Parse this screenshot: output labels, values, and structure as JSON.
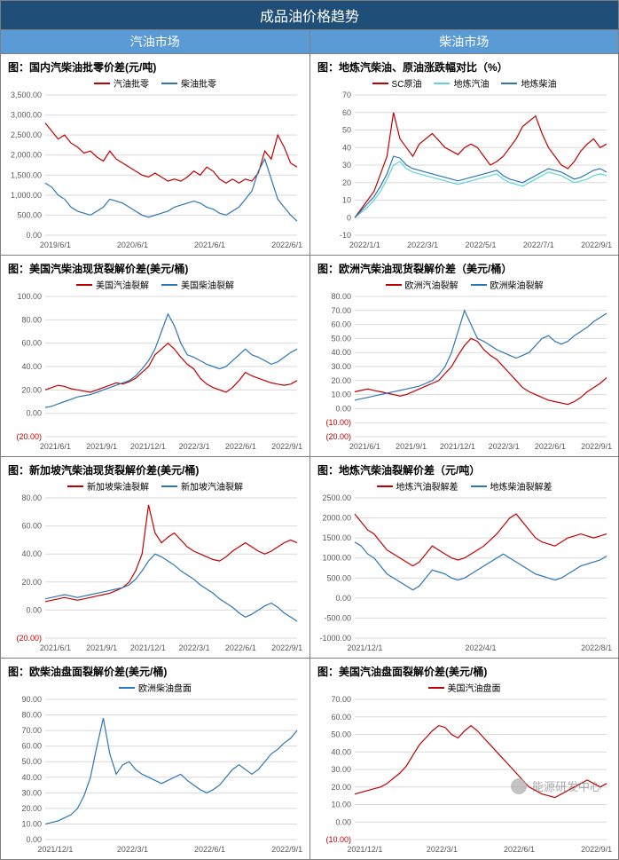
{
  "main_title": "成品油价格趋势",
  "col_headers": [
    "汽油市场",
    "柴油市场"
  ],
  "watermark": "能源研发中心",
  "colors": {
    "red": "#c00000",
    "blue": "#2e75b6",
    "cyan": "#5bd5d5",
    "grid": "#d9d9d9",
    "axis": "#bfbfbf"
  },
  "charts": [
    {
      "title": "图：国内汽柴油批零价差(元/吨)",
      "legend": [
        {
          "label": "汽油批零",
          "color": "#c00000"
        },
        {
          "label": "柴油批零",
          "color": "#2e75b6"
        }
      ],
      "y": {
        "min": 0,
        "max": 3500,
        "step": 500,
        "fmt": "comma"
      },
      "x_labels": [
        "2019/6/1",
        "2020/6/1",
        "2021/6/1",
        "2022/6/1"
      ],
      "series": [
        {
          "color": "#c00000",
          "data": [
            2800,
            2600,
            2400,
            2500,
            2300,
            2200,
            2050,
            2100,
            1950,
            1850,
            2100,
            1900,
            1800,
            1700,
            1600,
            1500,
            1450,
            1550,
            1450,
            1350,
            1400,
            1350,
            1450,
            1600,
            1500,
            1700,
            1600,
            1400,
            1300,
            1400,
            1300,
            1400,
            1350,
            1550,
            2100,
            1900,
            2500,
            2200,
            1800,
            1700
          ]
        },
        {
          "color": "#2e75b6",
          "data": [
            1300,
            1200,
            1000,
            900,
            700,
            600,
            550,
            500,
            600,
            700,
            900,
            850,
            800,
            700,
            600,
            500,
            450,
            500,
            550,
            600,
            700,
            750,
            800,
            850,
            800,
            700,
            650,
            550,
            500,
            600,
            700,
            900,
            1100,
            1600,
            1900,
            1400,
            900,
            700,
            500,
            350
          ]
        }
      ]
    },
    {
      "title": "图：地炼汽柴油、原油涨跌幅对比（%）",
      "legend": [
        {
          "label": "SC原油",
          "color": "#c00000"
        },
        {
          "label": "地炼汽油",
          "color": "#5bd5d5"
        },
        {
          "label": "地炼柴油",
          "color": "#2e75b6"
        }
      ],
      "y": {
        "min": -10,
        "max": 70,
        "step": 10,
        "fmt": "plain"
      },
      "x_labels": [
        "2022/1/1",
        "2022/3/1",
        "2022/5/1",
        "2022/7/1",
        "2022/9/1"
      ],
      "series": [
        {
          "color": "#c00000",
          "data": [
            0,
            5,
            10,
            15,
            25,
            35,
            60,
            45,
            40,
            35,
            42,
            45,
            48,
            44,
            40,
            38,
            36,
            40,
            42,
            40,
            35,
            30,
            32,
            35,
            40,
            45,
            52,
            55,
            58,
            48,
            40,
            35,
            30,
            28,
            32,
            38,
            42,
            45,
            40,
            42
          ]
        },
        {
          "color": "#5bd5d5",
          "data": [
            0,
            3,
            6,
            10,
            15,
            22,
            30,
            32,
            28,
            26,
            25,
            24,
            23,
            22,
            21,
            20,
            19,
            20,
            21,
            22,
            23,
            24,
            25,
            22,
            20,
            19,
            18,
            20,
            22,
            24,
            26,
            25,
            24,
            22,
            20,
            21,
            22,
            24,
            25,
            24
          ]
        },
        {
          "color": "#2e75b6",
          "data": [
            0,
            4,
            8,
            12,
            18,
            25,
            35,
            34,
            30,
            28,
            27,
            26,
            25,
            24,
            23,
            22,
            21,
            22,
            23,
            24,
            25,
            26,
            27,
            24,
            22,
            21,
            20,
            22,
            24,
            26,
            28,
            27,
            26,
            24,
            22,
            23,
            25,
            27,
            28,
            26
          ]
        }
      ]
    },
    {
      "title": "图：美国汽柴油现货裂解价差(美元/桶)",
      "legend": [
        {
          "label": "美国汽油裂解",
          "color": "#c00000"
        },
        {
          "label": "美国柴油裂解",
          "color": "#2e75b6"
        }
      ],
      "y": {
        "min": -20,
        "max": 100,
        "step": 20,
        "fmt": "dec2",
        "neg": true
      },
      "x_labels": [
        "2021/6/1",
        "2021/9/1",
        "2021/12/1",
        "2022/3/1",
        "2022/6/1",
        "2022/9/1"
      ],
      "series": [
        {
          "color": "#c00000",
          "data": [
            20,
            22,
            24,
            23,
            21,
            20,
            19,
            18,
            20,
            22,
            24,
            26,
            25,
            27,
            30,
            35,
            40,
            50,
            55,
            60,
            55,
            48,
            42,
            38,
            30,
            25,
            22,
            20,
            18,
            22,
            28,
            35,
            32,
            30,
            28,
            26,
            25,
            24,
            25,
            28
          ]
        },
        {
          "color": "#2e75b6",
          "data": [
            5,
            6,
            8,
            10,
            12,
            14,
            15,
            16,
            18,
            20,
            22,
            24,
            26,
            28,
            32,
            38,
            45,
            55,
            70,
            85,
            75,
            60,
            50,
            48,
            45,
            42,
            40,
            38,
            40,
            45,
            50,
            55,
            50,
            48,
            45,
            42,
            44,
            48,
            52,
            55
          ]
        }
      ]
    },
    {
      "title": "图：欧洲汽柴油现货裂解价差（美元/桶）",
      "legend": [
        {
          "label": "欧洲汽油裂解",
          "color": "#c00000"
        },
        {
          "label": "欧洲柴油裂解",
          "color": "#2e75b6"
        }
      ],
      "y": {
        "min": -20,
        "max": 80,
        "step": 10,
        "fmt": "dec2",
        "neg": true
      },
      "x_labels": [
        "2021/6/1",
        "2021/9/1",
        "2021/12/1",
        "2022/3/1",
        "2022/6/1",
        "2022/9/1"
      ],
      "series": [
        {
          "color": "#c00000",
          "data": [
            12,
            13,
            14,
            13,
            12,
            11,
            10,
            9,
            10,
            12,
            14,
            16,
            18,
            20,
            25,
            30,
            38,
            45,
            50,
            48,
            42,
            38,
            35,
            30,
            25,
            20,
            15,
            12,
            10,
            8,
            6,
            5,
            4,
            3,
            5,
            8,
            12,
            15,
            18,
            22
          ]
        },
        {
          "color": "#2e75b6",
          "data": [
            6,
            7,
            8,
            9,
            10,
            11,
            12,
            13,
            14,
            15,
            16,
            18,
            20,
            24,
            30,
            40,
            55,
            70,
            60,
            50,
            48,
            45,
            42,
            40,
            38,
            36,
            38,
            40,
            45,
            50,
            52,
            48,
            46,
            48,
            52,
            55,
            58,
            62,
            65,
            68
          ]
        }
      ]
    },
    {
      "title": "图：新加坡汽柴油现货裂解价差(美元/桶)",
      "legend": [
        {
          "label": "新加坡柴油裂解",
          "color": "#c00000"
        },
        {
          "label": "新加坡汽油裂解",
          "color": "#2e75b6"
        }
      ],
      "y": {
        "min": -20,
        "max": 80,
        "step": 20,
        "fmt": "dec2",
        "neg": true
      },
      "x_labels": [
        "2021/6/1",
        "2021/9/1",
        "2021/12/1",
        "2022/3/1",
        "2022/6/1",
        "2022/9/1"
      ],
      "series": [
        {
          "color": "#c00000",
          "data": [
            6,
            7,
            8,
            9,
            8,
            7,
            8,
            9,
            10,
            11,
            12,
            14,
            16,
            20,
            28,
            40,
            75,
            55,
            48,
            52,
            55,
            50,
            45,
            42,
            40,
            38,
            36,
            35,
            38,
            42,
            45,
            48,
            45,
            42,
            40,
            42,
            45,
            48,
            50,
            48
          ]
        },
        {
          "color": "#2e75b6",
          "data": [
            8,
            9,
            10,
            11,
            10,
            9,
            10,
            11,
            12,
            13,
            14,
            15,
            16,
            18,
            22,
            28,
            35,
            40,
            38,
            35,
            32,
            28,
            25,
            22,
            18,
            15,
            12,
            8,
            5,
            2,
            -2,
            -5,
            -3,
            0,
            3,
            5,
            2,
            -2,
            -5,
            -8
          ]
        }
      ]
    },
    {
      "title": "图：地炼汽柴油裂解价差（元/吨）",
      "legend": [
        {
          "label": "地炼汽油裂解差",
          "color": "#c00000"
        },
        {
          "label": "地炼柴油裂解差",
          "color": "#2e75b6"
        }
      ],
      "y": {
        "min": -1000,
        "max": 2500,
        "step": 500,
        "fmt": "dec2"
      },
      "x_labels": [
        "2021/12/1",
        "2022/4/1",
        "2022/8/1"
      ],
      "series": [
        {
          "color": "#c00000",
          "data": [
            2100,
            1900,
            1700,
            1600,
            1400,
            1200,
            1100,
            1000,
            900,
            800,
            900,
            1100,
            1300,
            1200,
            1100,
            1000,
            950,
            1000,
            1100,
            1200,
            1300,
            1450,
            1600,
            1800,
            2000,
            2100,
            1900,
            1700,
            1500,
            1400,
            1350,
            1300,
            1400,
            1500,
            1550,
            1600,
            1550,
            1500,
            1550,
            1600
          ]
        },
        {
          "color": "#2e75b6",
          "data": [
            1400,
            1300,
            1100,
            1000,
            800,
            600,
            500,
            400,
            300,
            200,
            300,
            500,
            700,
            650,
            600,
            500,
            450,
            500,
            600,
            700,
            800,
            900,
            1000,
            1100,
            1000,
            900,
            800,
            700,
            600,
            550,
            500,
            450,
            500,
            600,
            700,
            800,
            850,
            900,
            950,
            1050
          ]
        }
      ]
    },
    {
      "title": "图：欧柴油盘面裂解价差(美元/桶)",
      "legend": [
        {
          "label": "欧洲柴油盘面",
          "color": "#2e75b6"
        }
      ],
      "y": {
        "min": 0,
        "max": 90,
        "step": 10,
        "fmt": "dec2"
      },
      "x_labels": [
        "2021/12/1",
        "2022/3/1",
        "2022/6/1",
        "2022/9/1"
      ],
      "series": [
        {
          "color": "#2e75b6",
          "data": [
            10,
            11,
            12,
            14,
            16,
            20,
            28,
            40,
            60,
            78,
            55,
            42,
            48,
            50,
            45,
            42,
            40,
            38,
            36,
            38,
            40,
            42,
            38,
            35,
            32,
            30,
            32,
            35,
            40,
            45,
            48,
            45,
            42,
            45,
            50,
            55,
            58,
            62,
            65,
            70
          ]
        }
      ]
    },
    {
      "title": "图：美国汽油盘面裂解价差(美元/桶)",
      "legend": [
        {
          "label": "美国汽油盘面",
          "color": "#c00000"
        }
      ],
      "y": {
        "min": -10,
        "max": 70,
        "step": 10,
        "fmt": "dec2",
        "neg": true
      },
      "x_labels": [
        "2021/12/1",
        "2022/3/1",
        "2022/6/1",
        "2022/9/1"
      ],
      "series": [
        {
          "color": "#c00000",
          "data": [
            16,
            17,
            18,
            19,
            20,
            22,
            25,
            28,
            32,
            38,
            44,
            48,
            52,
            55,
            54,
            50,
            48,
            52,
            55,
            52,
            48,
            44,
            40,
            36,
            32,
            28,
            24,
            20,
            18,
            16,
            15,
            14,
            16,
            18,
            20,
            22,
            24,
            22,
            20,
            22
          ]
        }
      ]
    }
  ]
}
